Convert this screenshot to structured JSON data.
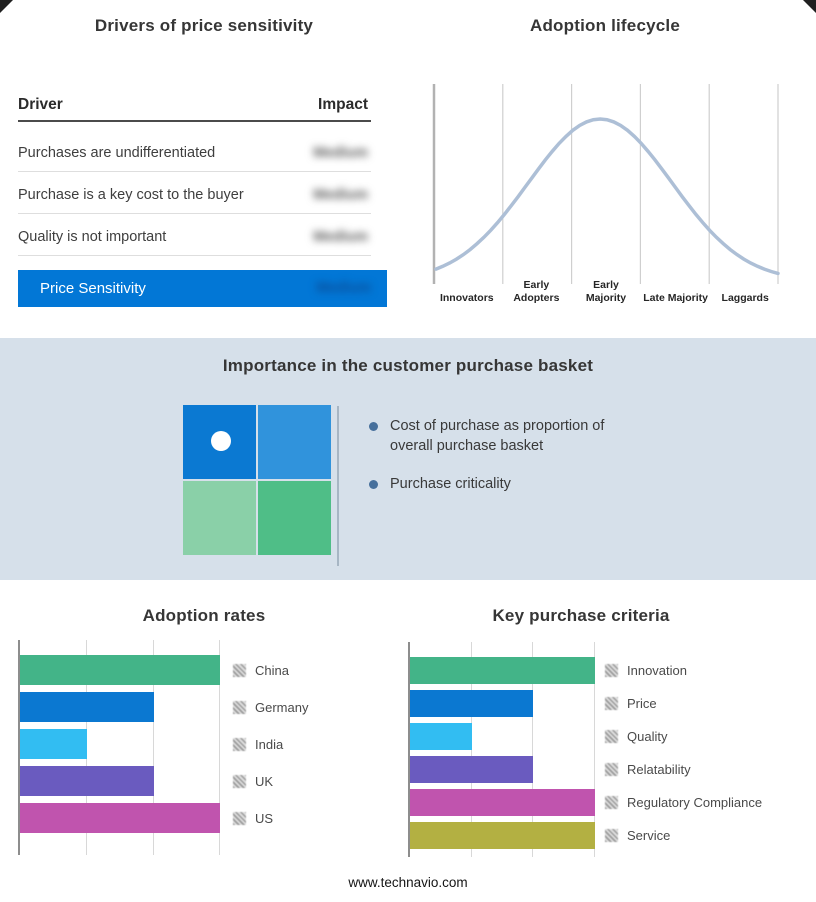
{
  "page": {
    "footer": "www.technavio.com"
  },
  "price_sensitivity_panel": {
    "title": "Drivers of price sensitivity",
    "table": {
      "columns": [
        "Driver",
        "Impact"
      ],
      "rows": [
        {
          "driver": "Purchases are undifferentiated",
          "impact": "Medium",
          "impact_redacted": true
        },
        {
          "driver": "Purchase is a key cost to the buyer",
          "impact": "Medium",
          "impact_redacted": true
        },
        {
          "driver": "Quality is not important",
          "impact": "Medium",
          "impact_redacted": true
        }
      ],
      "summary_row": {
        "label": "Price Sensitivity",
        "impact": "Medium",
        "impact_redacted": true,
        "background": "#0277d6"
      }
    }
  },
  "purchase_basket": {
    "title": "Importance in the customer purchase basket",
    "background": "#d6e0ea",
    "quadrant_colors": {
      "top_left": "#0b79d2",
      "top_right": "#3093dc",
      "bottom_left": "#8ad0a8",
      "bottom_right": "#4fbe87"
    },
    "bullets": [
      "Cost of purchase as proportion of overall purchase basket",
      "Purchase criticality"
    ]
  },
  "chart_data": [
    {
      "type": "line",
      "title": "Adoption lifecycle",
      "categories": [
        "Innovators",
        "Early Adopters",
        "Early Majority",
        "Late Majority",
        "Laggards"
      ],
      "curve": "bell",
      "profile": [
        0.2,
        0.69,
        1.0,
        0.58,
        0.14
      ],
      "color": "#adbfd6",
      "grid": "vertical-stage-dividers",
      "xlabel": "",
      "ylabel": ""
    },
    {
      "type": "bar",
      "orientation": "horizontal",
      "title": "Adoption rates",
      "categories": [
        "China",
        "Germany",
        "India",
        "UK",
        "US"
      ],
      "values": [
        3,
        2,
        1,
        2,
        3
      ],
      "colors": [
        "#43b488",
        "#0b78d1",
        "#32bdf2",
        "#6a5bbf",
        "#c054ae"
      ],
      "xlim": [
        0,
        3
      ],
      "grid": true,
      "legend_position": "right",
      "value_labels_shown": false
    },
    {
      "type": "bar",
      "orientation": "horizontal",
      "title": "Key purchase criteria",
      "categories": [
        "Innovation",
        "Price",
        "Quality",
        "Relatability",
        "Regulatory Compliance",
        "Service"
      ],
      "values": [
        3,
        2,
        1,
        2,
        3,
        3
      ],
      "colors": [
        "#43b488",
        "#0b78d1",
        "#32bdf2",
        "#6a5bbf",
        "#c054ae",
        "#b3b042"
      ],
      "xlim": [
        0,
        3
      ],
      "grid": true,
      "legend_position": "right",
      "value_labels_shown": false
    }
  ]
}
